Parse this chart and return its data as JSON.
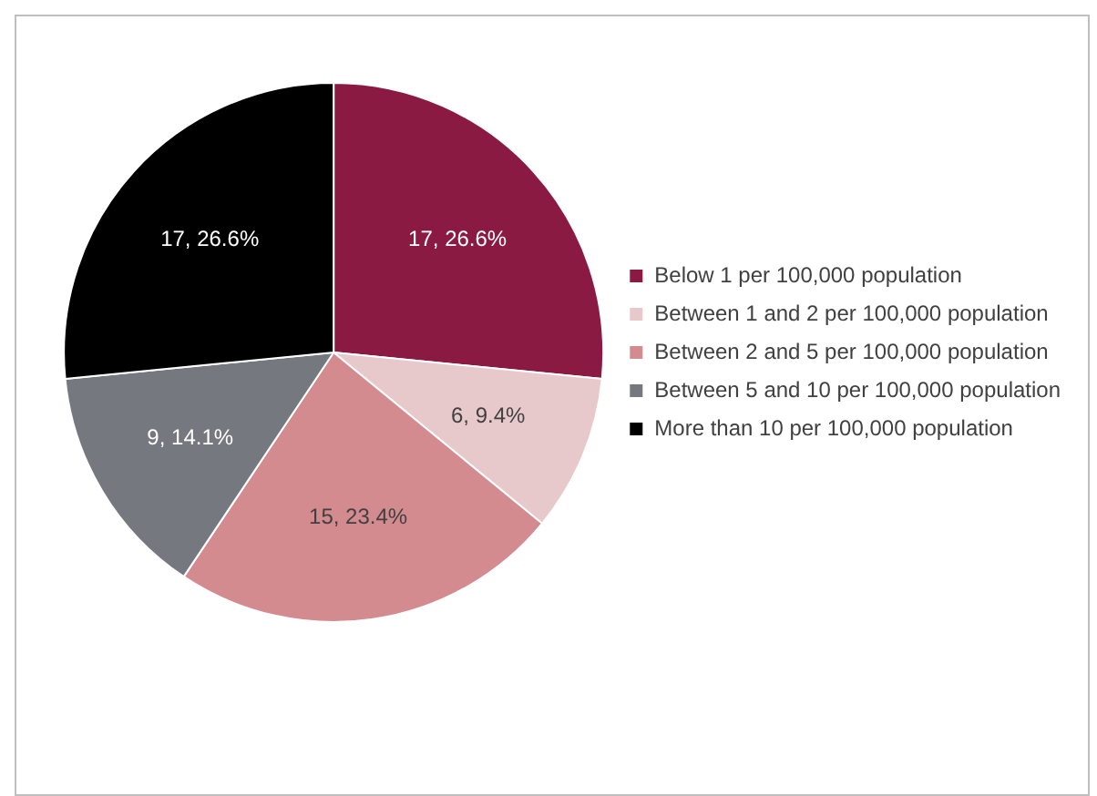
{
  "chart_data": {
    "type": "pie",
    "categories": [
      "Below 1 per 100,000 population",
      "Between 1 and 2 per 100,000 population",
      "Between 2 and 5 per 100,000 population",
      "Between 5 and 10 per 100,000 population",
      "More than 10 per 100,000 population"
    ],
    "values": [
      17,
      6,
      15,
      9,
      17
    ],
    "colors": [
      "#8b1a42",
      "#e8c9cb",
      "#d48b8f",
      "#767880",
      "#000000"
    ],
    "value_labels": [
      "17, 26.6%",
      "6, 9.4%",
      "15, 23.4%",
      "9, 14.1%",
      "17, 26.6%"
    ],
    "legend": "right"
  }
}
